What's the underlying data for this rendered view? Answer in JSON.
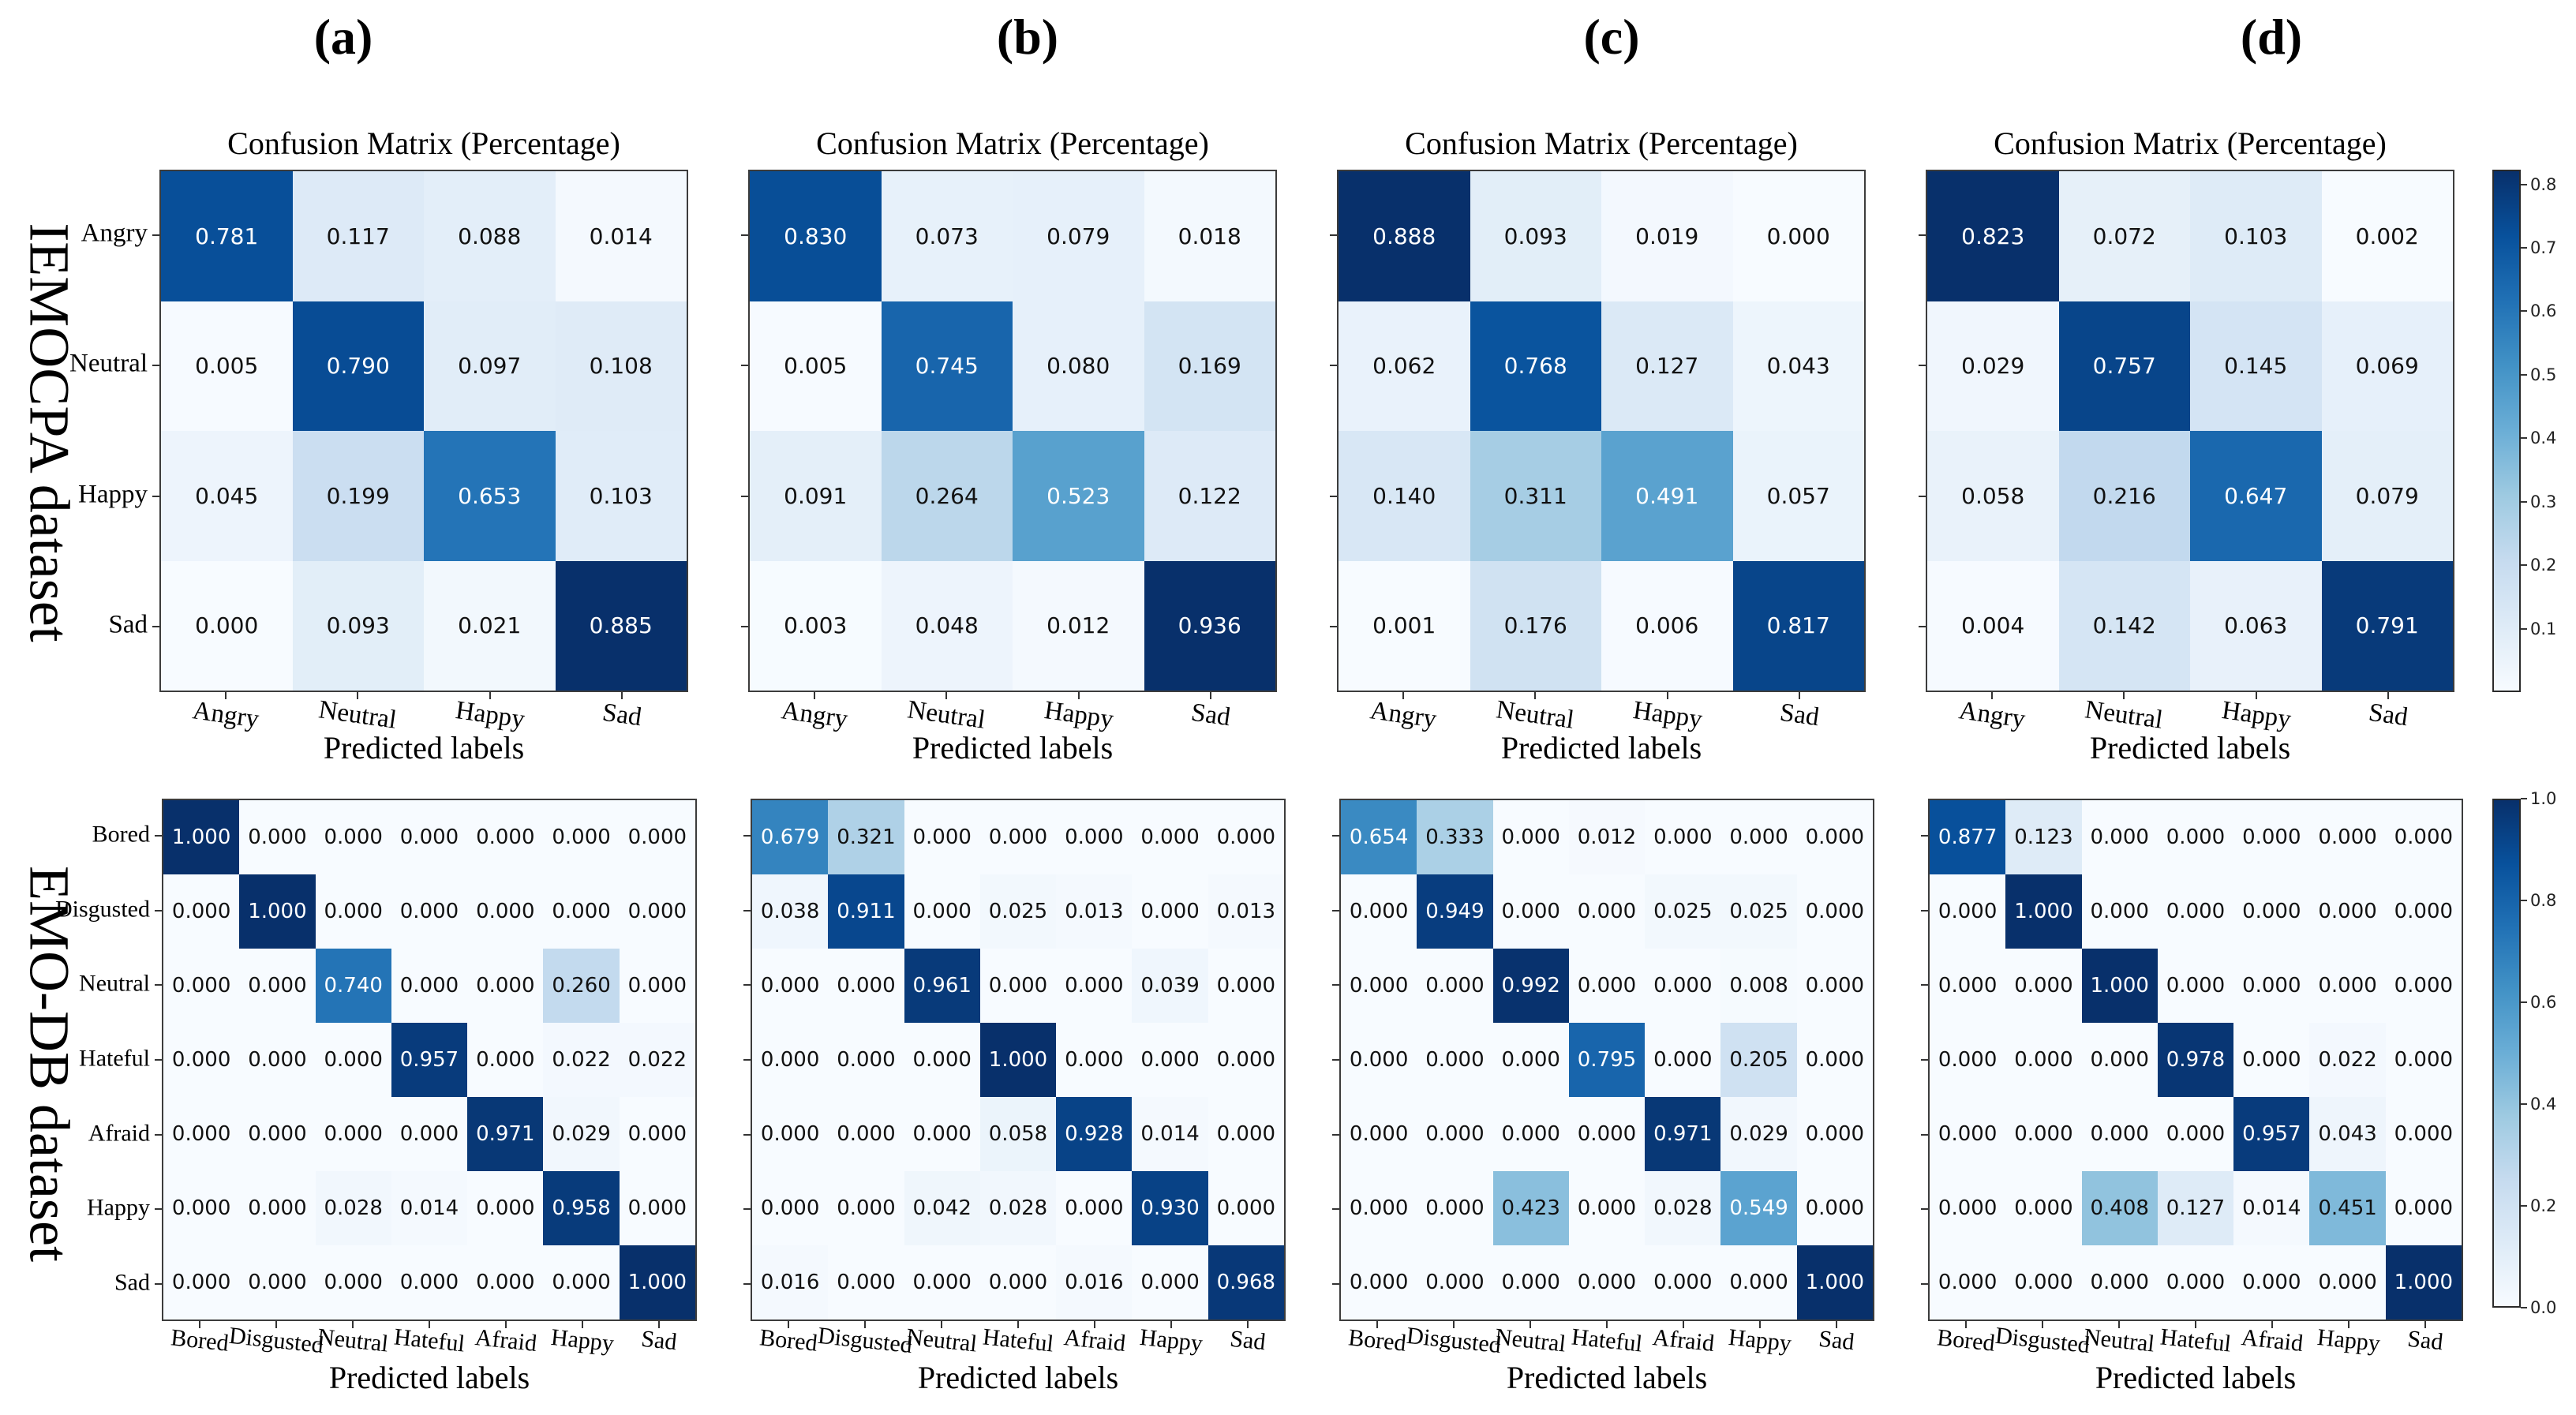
{
  "figure_title": "",
  "panels": {
    "labels": [
      "(a)",
      "(b)",
      "(c)",
      "(d)"
    ]
  },
  "datasets": [
    {
      "name": "IEMOCPA dataset"
    },
    {
      "name": "EMO-DB dataset"
    }
  ],
  "subplot_title": "Confusion Matrix (Percentage)",
  "xlabel": "Predicted labels",
  "colorbars": {
    "top": {
      "vmax": 0.823,
      "ticks": [
        "0.8",
        "0.7",
        "0.6",
        "0.5",
        "0.4",
        "0.3",
        "0.2",
        "0.1"
      ]
    },
    "bottom": {
      "vmax": 1.0,
      "ticks": [
        "1.0",
        "0.8",
        "0.6",
        "0.4",
        "0.2",
        "0.0"
      ]
    }
  },
  "colors": {
    "cmap": "Blues",
    "cmap_anchors": [
      "#f7fbff",
      "#deebf7",
      "#c6dbef",
      "#9ecae1",
      "#6baed6",
      "#4292c6",
      "#2171b5",
      "#08519c",
      "#08306b"
    ],
    "spine": "#3c3c3c",
    "text_dark": "#111111",
    "text_light": "#ffffff"
  },
  "chart_data": [
    {
      "type": "heatmap",
      "panel": "a",
      "row": "top",
      "dataset": "IEMOCPA dataset",
      "title": "Confusion Matrix (Percentage)",
      "xlabel": "Predicted labels",
      "categories": [
        "Angry",
        "Neutral",
        "Happy",
        "Sad"
      ],
      "matrix": [
        [
          0.781,
          0.117,
          0.088,
          0.014
        ],
        [
          0.005,
          0.79,
          0.097,
          0.108
        ],
        [
          0.045,
          0.199,
          0.653,
          0.103
        ],
        [
          0.0,
          0.093,
          0.021,
          0.885
        ]
      ]
    },
    {
      "type": "heatmap",
      "panel": "b",
      "row": "top",
      "dataset": "IEMOCPA dataset",
      "title": "Confusion Matrix (Percentage)",
      "xlabel": "Predicted labels",
      "categories": [
        "Angry",
        "Neutral",
        "Happy",
        "Sad"
      ],
      "matrix": [
        [
          0.83,
          0.073,
          0.079,
          0.018
        ],
        [
          0.005,
          0.745,
          0.08,
          0.169
        ],
        [
          0.091,
          0.264,
          0.523,
          0.122
        ],
        [
          0.003,
          0.048,
          0.012,
          0.936
        ]
      ]
    },
    {
      "type": "heatmap",
      "panel": "c",
      "row": "top",
      "dataset": "IEMOCPA dataset",
      "title": "Confusion Matrix (Percentage)",
      "xlabel": "Predicted labels",
      "categories": [
        "Angry",
        "Neutral",
        "Happy",
        "Sad"
      ],
      "matrix": [
        [
          0.888,
          0.093,
          0.019,
          0.0
        ],
        [
          0.062,
          0.768,
          0.127,
          0.043
        ],
        [
          0.14,
          0.311,
          0.491,
          0.057
        ],
        [
          0.001,
          0.176,
          0.006,
          0.817
        ]
      ]
    },
    {
      "type": "heatmap",
      "panel": "d",
      "row": "top",
      "dataset": "IEMOCPA dataset",
      "title": "Confusion Matrix (Percentage)",
      "xlabel": "Predicted labels",
      "categories": [
        "Angry",
        "Neutral",
        "Happy",
        "Sad"
      ],
      "matrix": [
        [
          0.823,
          0.072,
          0.103,
          0.002
        ],
        [
          0.029,
          0.757,
          0.145,
          0.069
        ],
        [
          0.058,
          0.216,
          0.647,
          0.079
        ],
        [
          0.004,
          0.142,
          0.063,
          0.791
        ]
      ]
    },
    {
      "type": "heatmap",
      "panel": "a",
      "row": "bottom",
      "dataset": "EMO-DB dataset",
      "title": "",
      "xlabel": "Predicted labels",
      "categories": [
        "Bored",
        "Disgusted",
        "Neutral",
        "Hateful",
        "Afraid",
        "Happy",
        "Sad"
      ],
      "matrix": [
        [
          1.0,
          0.0,
          0.0,
          0.0,
          0.0,
          0.0,
          0.0
        ],
        [
          0.0,
          1.0,
          0.0,
          0.0,
          0.0,
          0.0,
          0.0
        ],
        [
          0.0,
          0.0,
          0.74,
          0.0,
          0.0,
          0.26,
          0.0
        ],
        [
          0.0,
          0.0,
          0.0,
          0.957,
          0.0,
          0.022,
          0.022
        ],
        [
          0.0,
          0.0,
          0.0,
          0.0,
          0.971,
          0.029,
          0.0
        ],
        [
          0.0,
          0.0,
          0.028,
          0.014,
          0.0,
          0.958,
          0.0
        ],
        [
          0.0,
          0.0,
          0.0,
          0.0,
          0.0,
          0.0,
          1.0
        ]
      ]
    },
    {
      "type": "heatmap",
      "panel": "b",
      "row": "bottom",
      "dataset": "EMO-DB dataset",
      "title": "",
      "xlabel": "Predicted labels",
      "categories": [
        "Bored",
        "Disgusted",
        "Neutral",
        "Hateful",
        "Afraid",
        "Happy",
        "Sad"
      ],
      "matrix": [
        [
          0.679,
          0.321,
          0.0,
          0.0,
          0.0,
          0.0,
          0.0
        ],
        [
          0.038,
          0.911,
          0.0,
          0.025,
          0.013,
          0.0,
          0.013
        ],
        [
          0.0,
          0.0,
          0.961,
          0.0,
          0.0,
          0.039,
          0.0
        ],
        [
          0.0,
          0.0,
          0.0,
          1.0,
          0.0,
          0.0,
          0.0
        ],
        [
          0.0,
          0.0,
          0.0,
          0.058,
          0.928,
          0.014,
          0.0
        ],
        [
          0.0,
          0.0,
          0.042,
          0.028,
          0.0,
          0.93,
          0.0
        ],
        [
          0.016,
          0.0,
          0.0,
          0.0,
          0.016,
          0.0,
          0.968
        ]
      ]
    },
    {
      "type": "heatmap",
      "panel": "c",
      "row": "bottom",
      "dataset": "EMO-DB dataset",
      "title": "",
      "xlabel": "Predicted labels",
      "categories": [
        "Bored",
        "Disgusted",
        "Neutral",
        "Hateful",
        "Afraid",
        "Happy",
        "Sad"
      ],
      "matrix": [
        [
          0.654,
          0.333,
          0.0,
          0.012,
          0.0,
          0.0,
          0.0
        ],
        [
          0.0,
          0.949,
          0.0,
          0.0,
          0.025,
          0.025,
          0.0
        ],
        [
          0.0,
          0.0,
          0.992,
          0.0,
          0.0,
          0.008,
          0.0
        ],
        [
          0.0,
          0.0,
          0.0,
          0.795,
          0.0,
          0.205,
          0.0
        ],
        [
          0.0,
          0.0,
          0.0,
          0.0,
          0.971,
          0.029,
          0.0
        ],
        [
          0.0,
          0.0,
          0.423,
          0.0,
          0.028,
          0.549,
          0.0
        ],
        [
          0.0,
          0.0,
          0.0,
          0.0,
          0.0,
          0.0,
          1.0
        ]
      ]
    },
    {
      "type": "heatmap",
      "panel": "d",
      "row": "bottom",
      "dataset": "EMO-DB dataset",
      "title": "",
      "xlabel": "Predicted labels",
      "categories": [
        "Bored",
        "Disgusted",
        "Neutral",
        "Hateful",
        "Afraid",
        "Happy",
        "Sad"
      ],
      "matrix": [
        [
          0.877,
          0.123,
          0.0,
          0.0,
          0.0,
          0.0,
          0.0
        ],
        [
          0.0,
          1.0,
          0.0,
          0.0,
          0.0,
          0.0,
          0.0
        ],
        [
          0.0,
          0.0,
          1.0,
          0.0,
          0.0,
          0.0,
          0.0
        ],
        [
          0.0,
          0.0,
          0.0,
          0.978,
          0.0,
          0.022,
          0.0
        ],
        [
          0.0,
          0.0,
          0.0,
          0.0,
          0.957,
          0.043,
          0.0
        ],
        [
          0.0,
          0.0,
          0.408,
          0.127,
          0.014,
          0.451,
          0.0
        ],
        [
          0.0,
          0.0,
          0.0,
          0.0,
          0.0,
          0.0,
          1.0
        ]
      ]
    }
  ]
}
